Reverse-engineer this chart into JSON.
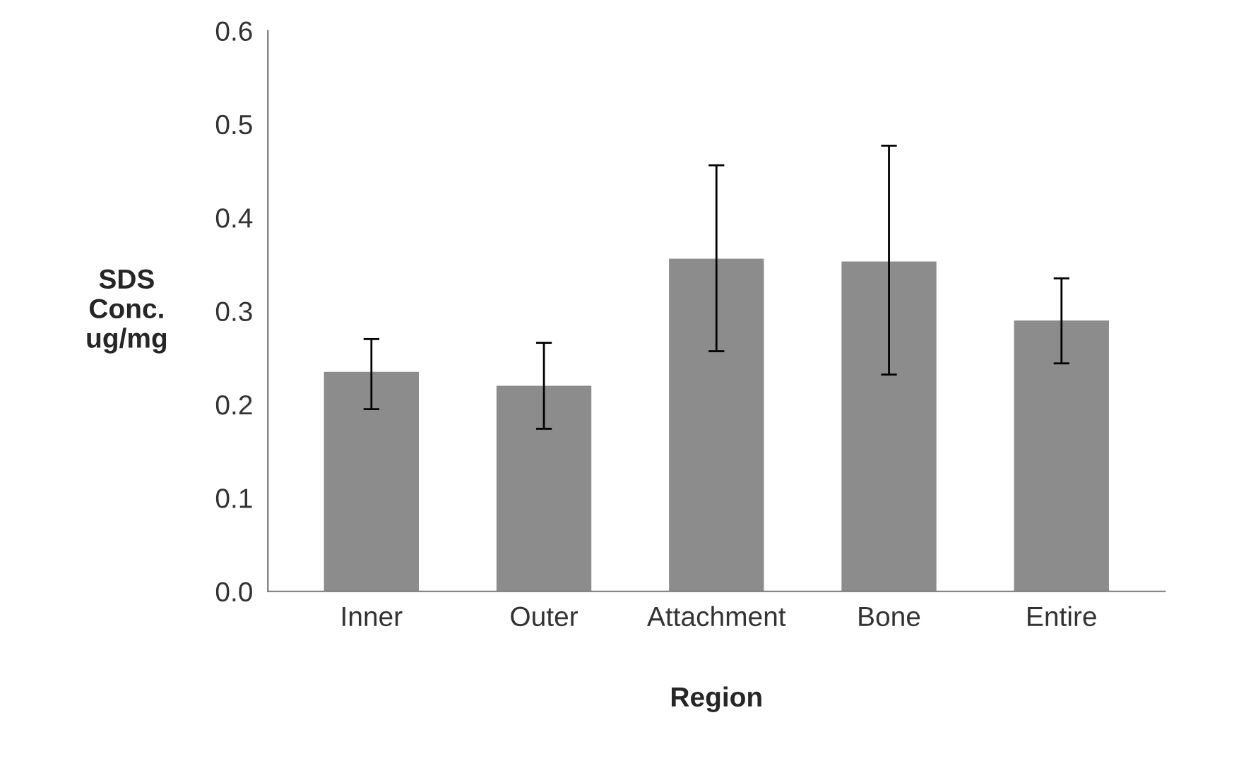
{
  "chart_data": {
    "type": "bar",
    "xlabel": "Region",
    "ylabel": "SDS\nConc.\nug/mg",
    "categories": [
      "Inner",
      "Outer",
      "Attachment",
      "Bone",
      "Entire"
    ],
    "values": [
      0.235,
      0.22,
      0.356,
      0.353,
      0.29
    ],
    "errors": [
      [
        0.195,
        0.27
      ],
      [
        0.174,
        0.266
      ],
      [
        0.257,
        0.456
      ],
      [
        0.232,
        0.477
      ],
      [
        0.244,
        0.335
      ]
    ],
    "color": "#8c8c8c",
    "ylim": [
      0,
      0.6
    ],
    "yticks": [
      {
        "value": 0,
        "label": "0.0"
      },
      0.1,
      0.2,
      0.3,
      0.4,
      0.5,
      0.6
    ],
    "grid": false
  }
}
